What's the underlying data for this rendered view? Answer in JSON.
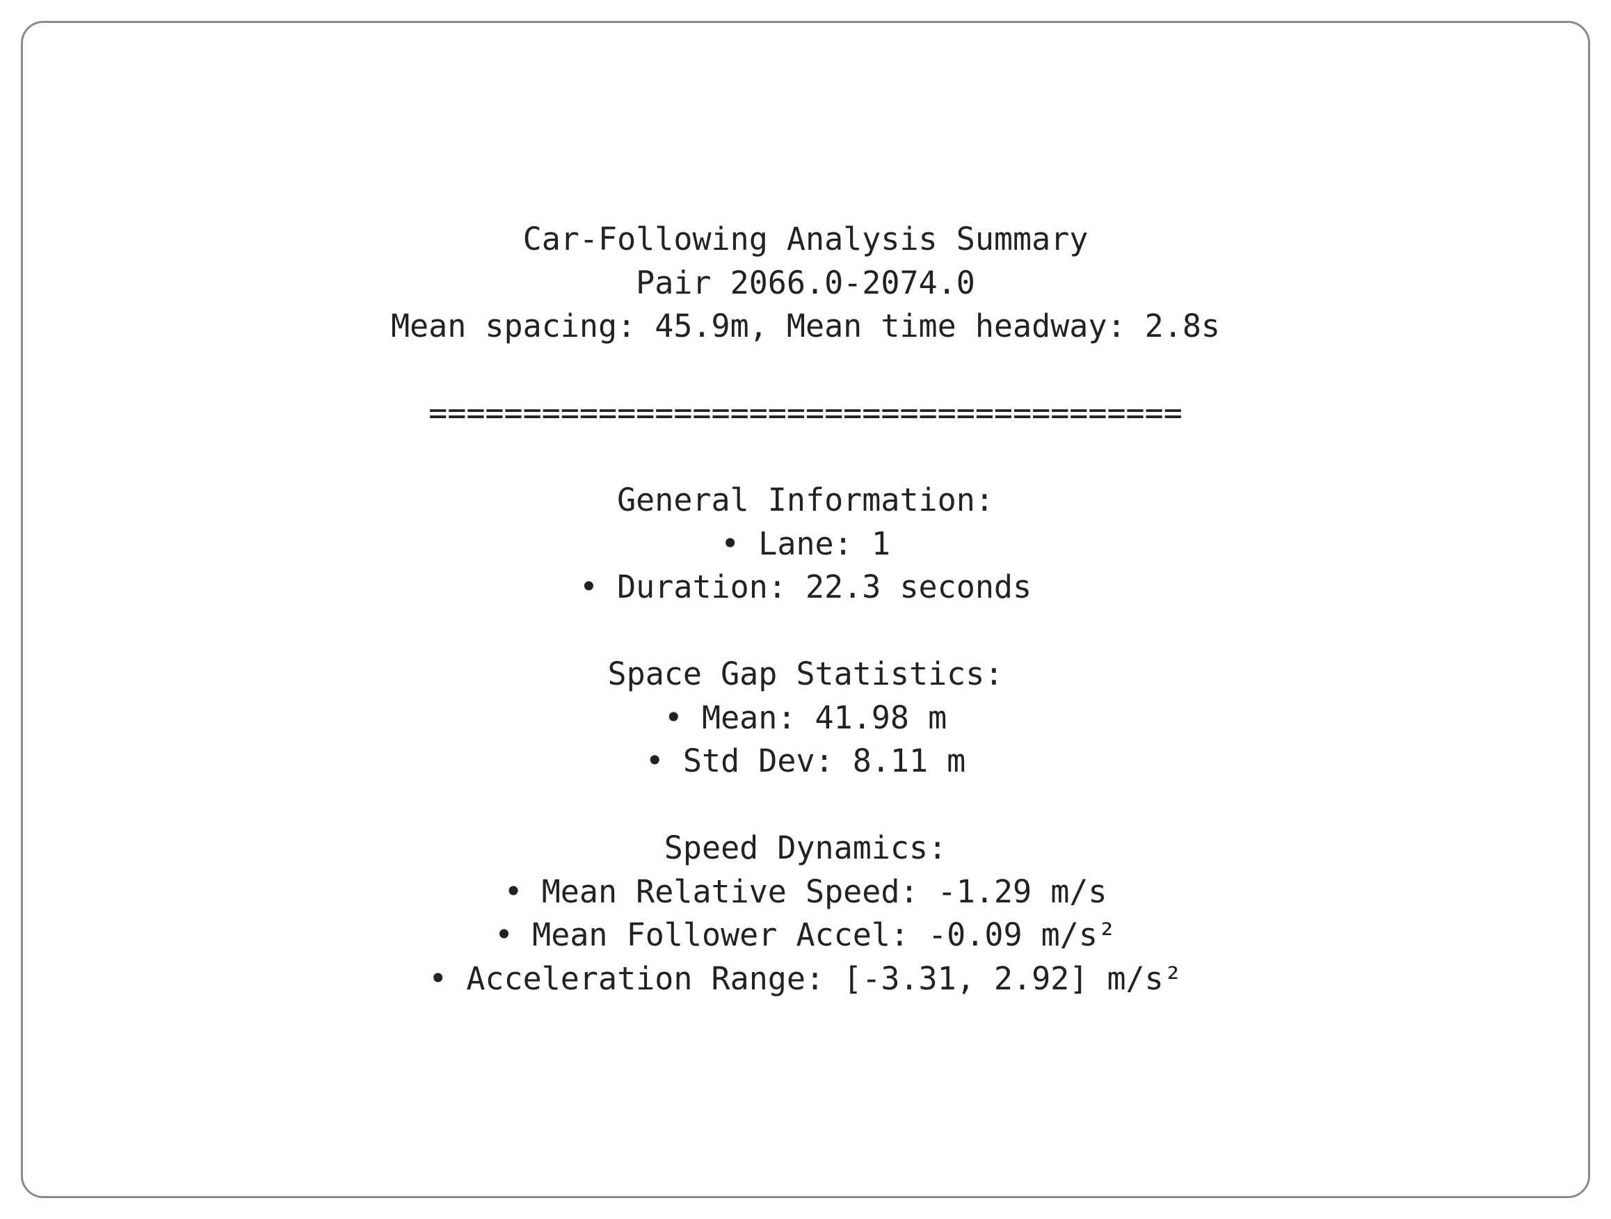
{
  "header": {
    "title": "Car-Following Analysis Summary",
    "pair": "Pair 2066.0-2074.0",
    "summary": "Mean spacing: 45.9m, Mean time headway: 2.8s"
  },
  "separator": "========================================",
  "sections": [
    {
      "heading": "General Information:",
      "items": [
        "• Lane: 1",
        "• Duration: 22.3 seconds"
      ]
    },
    {
      "heading": "Space Gap Statistics:",
      "items": [
        "• Mean: 41.98 m",
        "• Std Dev: 8.11 m"
      ]
    },
    {
      "heading": "Speed Dynamics:",
      "items": [
        "• Mean Relative Speed: -1.29 m/s",
        "• Mean Follower Accel: -0.09 m/s²",
        "• Acceleration Range: [-3.31, 2.92] m/s²"
      ]
    }
  ]
}
